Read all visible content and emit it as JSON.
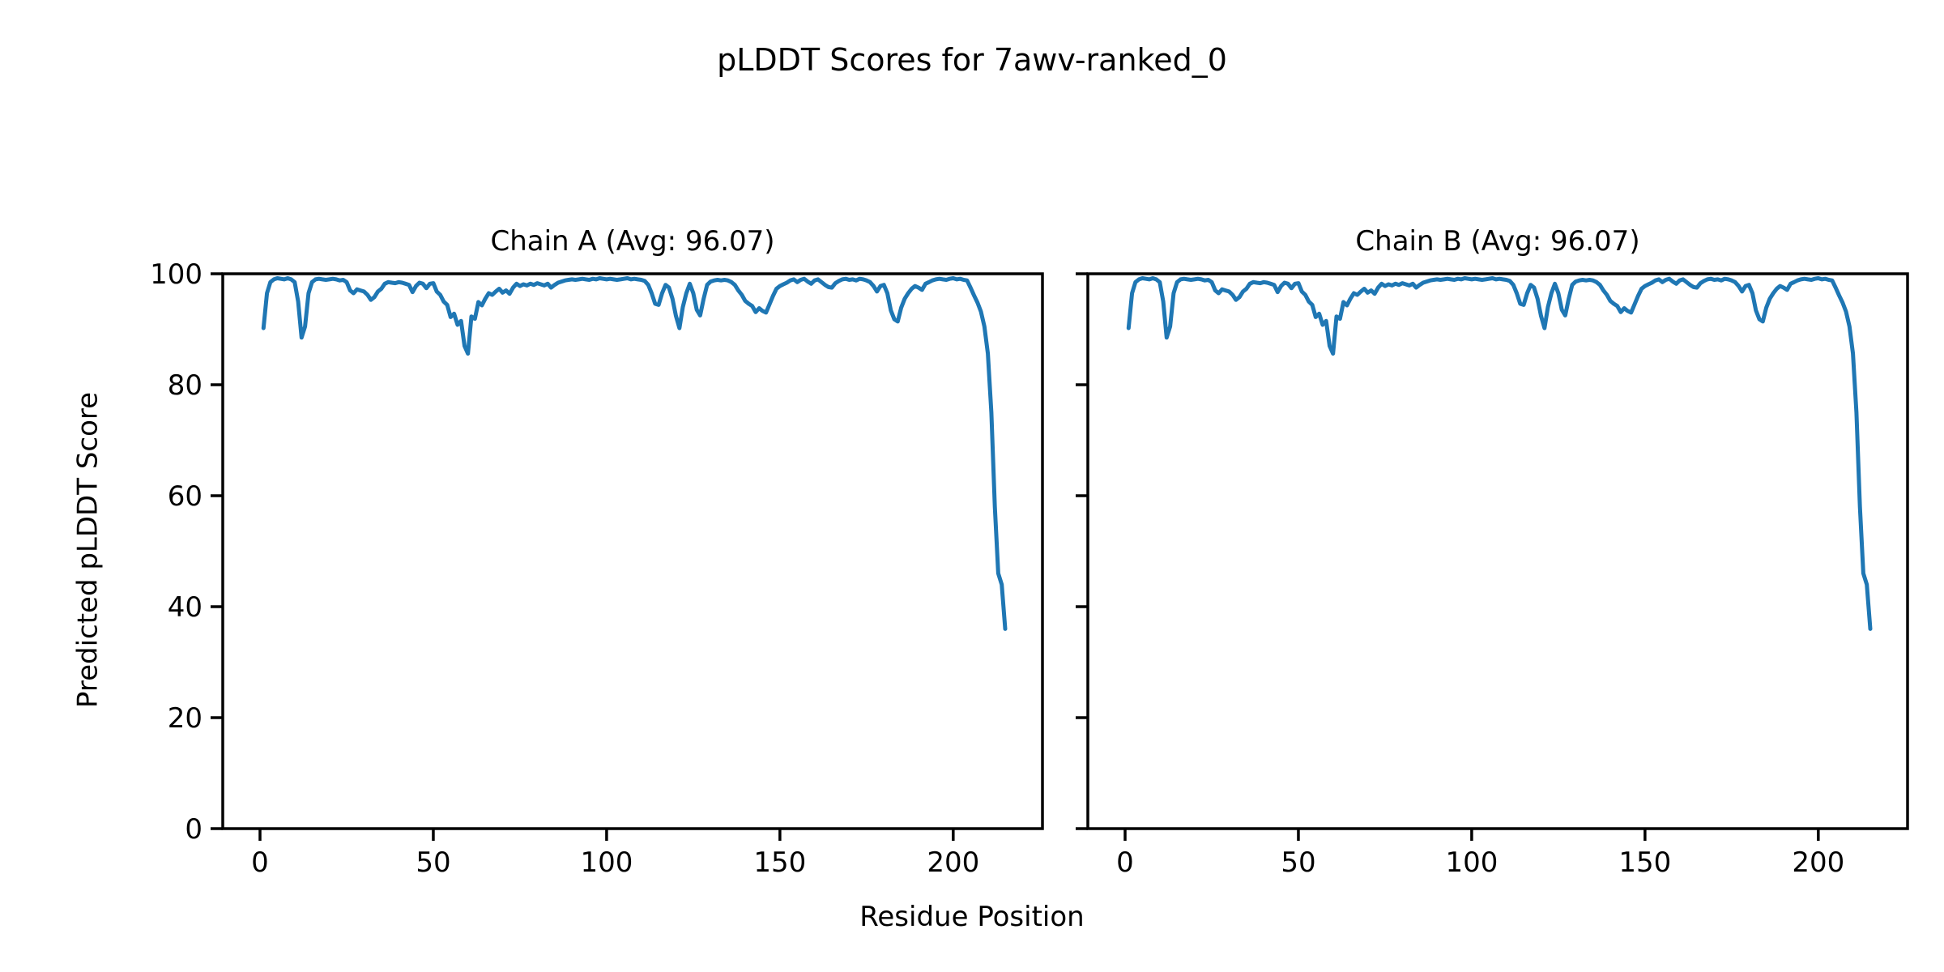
{
  "title": "pLDDT Scores for 7awv-ranked_0",
  "colors": {
    "line": "#1f77b4",
    "axis": "#000000",
    "text": "#000000",
    "background": "#ffffff"
  },
  "chart_data": {
    "type": "line",
    "xlabel": "Residue Position",
    "ylabel": "Predicted pLDDT Score",
    "xticks": [
      0,
      50,
      100,
      150,
      200
    ],
    "yticks": [
      0,
      20,
      40,
      60,
      80,
      100
    ],
    "xlim": [
      -10.75,
      225.75
    ],
    "ylim": [
      0,
      100
    ],
    "grid": false,
    "legend": "none",
    "x_start_residue": 1,
    "subplots": [
      {
        "title": "Chain A (Avg: 96.07)",
        "chain": "A",
        "avg": 96.07,
        "values": [
          90.2,
          96.5,
          98.5,
          99.0,
          99.2,
          99.1,
          99.0,
          99.2,
          99.0,
          98.5,
          95.0,
          88.5,
          90.5,
          96.5,
          98.5,
          99.0,
          99.1,
          99.0,
          98.9,
          99.0,
          99.1,
          99.0,
          98.8,
          98.9,
          98.5,
          97.0,
          96.5,
          97.2,
          97.0,
          96.8,
          96.2,
          95.3,
          95.8,
          96.8,
          97.3,
          98.2,
          98.5,
          98.4,
          98.3,
          98.5,
          98.4,
          98.2,
          98.0,
          96.7,
          97.8,
          98.4,
          98.2,
          97.4,
          98.2,
          98.3,
          96.8,
          96.2,
          95.0,
          94.4,
          92.2,
          92.8,
          90.8,
          91.5,
          87.0,
          85.6,
          92.3,
          91.9,
          94.9,
          94.3,
          95.5,
          96.5,
          96.2,
          96.8,
          97.3,
          96.6,
          97.0,
          96.4,
          97.5,
          98.2,
          97.8,
          98.1,
          97.9,
          98.2,
          98.0,
          98.3,
          98.1,
          97.9,
          98.2,
          97.5,
          98.0,
          98.4,
          98.6,
          98.8,
          98.9,
          99.0,
          98.9,
          99.0,
          99.1,
          99.0,
          98.9,
          99.1,
          99.0,
          99.2,
          99.1,
          99.0,
          99.1,
          99.0,
          98.9,
          99.0,
          99.1,
          99.2,
          99.0,
          99.1,
          99.0,
          98.9,
          98.7,
          98.0,
          96.5,
          94.6,
          94.4,
          96.5,
          98.0,
          97.5,
          95.5,
          92.4,
          90.2,
          94.0,
          96.5,
          98.2,
          96.5,
          93.5,
          92.5,
          95.5,
          98.0,
          98.6,
          98.8,
          98.9,
          98.8,
          98.9,
          98.8,
          98.5,
          98.0,
          97.0,
          96.2,
          95.1,
          94.6,
          94.2,
          93.1,
          93.8,
          93.3,
          93.0,
          94.5,
          96.0,
          97.3,
          97.8,
          98.1,
          98.4,
          98.8,
          99.0,
          98.5,
          98.9,
          99.1,
          98.6,
          98.2,
          98.8,
          99.0,
          98.5,
          98.0,
          97.6,
          97.5,
          98.3,
          98.7,
          99.0,
          99.1,
          98.9,
          99.0,
          98.8,
          99.1,
          99.0,
          98.8,
          98.5,
          97.8,
          96.8,
          97.8,
          98.0,
          96.5,
          93.4,
          91.8,
          91.4,
          93.9,
          95.5,
          96.5,
          97.3,
          97.8,
          97.5,
          97.1,
          98.2,
          98.5,
          98.8,
          99.0,
          99.1,
          99.0,
          98.9,
          99.1,
          99.2,
          99.0,
          99.1,
          98.9,
          98.8,
          97.5,
          96.1,
          94.8,
          93.2,
          90.5,
          85.6,
          75.0,
          58.0,
          46.0,
          44.0,
          36.0
        ]
      },
      {
        "title": "Chain B (Avg: 96.07)",
        "chain": "B",
        "avg": 96.07,
        "values": [
          90.2,
          96.5,
          98.5,
          99.0,
          99.2,
          99.1,
          99.0,
          99.2,
          99.0,
          98.5,
          95.0,
          88.5,
          90.5,
          96.5,
          98.5,
          99.0,
          99.1,
          99.0,
          98.9,
          99.0,
          99.1,
          99.0,
          98.8,
          98.9,
          98.5,
          97.0,
          96.5,
          97.2,
          97.0,
          96.8,
          96.2,
          95.3,
          95.8,
          96.8,
          97.3,
          98.2,
          98.5,
          98.4,
          98.3,
          98.5,
          98.4,
          98.2,
          98.0,
          96.7,
          97.8,
          98.4,
          98.2,
          97.4,
          98.2,
          98.3,
          96.8,
          96.2,
          95.0,
          94.4,
          92.2,
          92.8,
          90.8,
          91.5,
          87.0,
          85.6,
          92.3,
          91.9,
          94.9,
          94.3,
          95.5,
          96.5,
          96.2,
          96.8,
          97.3,
          96.6,
          97.0,
          96.4,
          97.5,
          98.2,
          97.8,
          98.1,
          97.9,
          98.2,
          98.0,
          98.3,
          98.1,
          97.9,
          98.2,
          97.5,
          98.0,
          98.4,
          98.6,
          98.8,
          98.9,
          99.0,
          98.9,
          99.0,
          99.1,
          99.0,
          98.9,
          99.1,
          99.0,
          99.2,
          99.1,
          99.0,
          99.1,
          99.0,
          98.9,
          99.0,
          99.1,
          99.2,
          99.0,
          99.1,
          99.0,
          98.9,
          98.7,
          98.0,
          96.5,
          94.6,
          94.4,
          96.5,
          98.0,
          97.5,
          95.5,
          92.4,
          90.2,
          94.0,
          96.5,
          98.2,
          96.5,
          93.5,
          92.5,
          95.5,
          98.0,
          98.6,
          98.8,
          98.9,
          98.8,
          98.9,
          98.8,
          98.5,
          98.0,
          97.0,
          96.2,
          95.1,
          94.6,
          94.2,
          93.1,
          93.8,
          93.3,
          93.0,
          94.5,
          96.0,
          97.3,
          97.8,
          98.1,
          98.4,
          98.8,
          99.0,
          98.5,
          98.9,
          99.1,
          98.6,
          98.2,
          98.8,
          99.0,
          98.5,
          98.0,
          97.6,
          97.5,
          98.3,
          98.7,
          99.0,
          99.1,
          98.9,
          99.0,
          98.8,
          99.1,
          99.0,
          98.8,
          98.5,
          97.8,
          96.8,
          97.8,
          98.0,
          96.5,
          93.4,
          91.8,
          91.4,
          93.9,
          95.5,
          96.5,
          97.3,
          97.8,
          97.5,
          97.1,
          98.2,
          98.5,
          98.8,
          99.0,
          99.1,
          99.0,
          98.9,
          99.1,
          99.2,
          99.0,
          99.1,
          98.9,
          98.8,
          97.5,
          96.1,
          94.8,
          93.2,
          90.5,
          85.6,
          75.0,
          58.0,
          46.0,
          44.0,
          36.0
        ]
      }
    ]
  }
}
